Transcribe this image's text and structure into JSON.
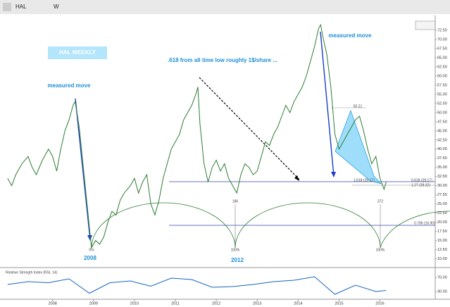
{
  "toolbar": {
    "symbol": "HAL",
    "interval": "W"
  },
  "chart_data": [
    {
      "type": "line",
      "color": "#2e7d32",
      "x": [
        2006.9,
        2007.0,
        2007.1,
        2007.25,
        2007.4,
        2007.5,
        2007.6,
        2007.75,
        2007.9,
        2008.0,
        2008.1,
        2008.2,
        2008.3,
        2008.4,
        2008.5,
        2008.55,
        2008.65,
        2008.75,
        2008.85,
        2008.95,
        2009.05,
        2009.15,
        2009.25,
        2009.35,
        2009.45,
        2009.55,
        2009.65,
        2009.75,
        2009.9,
        2010.0,
        2010.1,
        2010.2,
        2010.3,
        2010.4,
        2010.5,
        2010.6,
        2010.7,
        2010.8,
        2010.9,
        2011.0,
        2011.1,
        2011.2,
        2011.3,
        2011.4,
        2011.5,
        2011.55,
        2011.6,
        2011.7,
        2011.8,
        2011.9,
        2012.0,
        2012.1,
        2012.2,
        2012.3,
        2012.4,
        2012.5,
        2012.6,
        2012.7,
        2012.8,
        2012.9,
        2013.0,
        2013.1,
        2013.2,
        2013.3,
        2013.4,
        2013.5,
        2013.6,
        2013.7,
        2013.8,
        2013.9,
        2014.0,
        2014.1,
        2014.2,
        2014.3,
        2014.4,
        2014.5,
        2014.55,
        2014.6,
        2014.7,
        2014.8,
        2014.9,
        2015.0,
        2015.1,
        2015.2,
        2015.3,
        2015.4,
        2015.5,
        2015.6,
        2015.7,
        2015.8,
        2015.9,
        2016.0,
        2016.1,
        2016.15
      ],
      "values": [
        32,
        30,
        33,
        36,
        38,
        35,
        33,
        37,
        40,
        38,
        34,
        40,
        45,
        48,
        52,
        53,
        46,
        35,
        24,
        13,
        15,
        14,
        16,
        20,
        23,
        22,
        26,
        28,
        30,
        32,
        28,
        31,
        33,
        25,
        22,
        26,
        32,
        36,
        40,
        42,
        44,
        48,
        50,
        52,
        55,
        57,
        47,
        36,
        31,
        35,
        37,
        34,
        36,
        32,
        30,
        28,
        33,
        36,
        35,
        33,
        34,
        38,
        42,
        41,
        44,
        46,
        49,
        52,
        50,
        53,
        55,
        57,
        60,
        64,
        68,
        73,
        74,
        71,
        66,
        57,
        44,
        40,
        42,
        44,
        46,
        48,
        49,
        45,
        40,
        36,
        38,
        32,
        29,
        31
      ],
      "xlim": [
        2006.8,
        2017.35
      ],
      "ylim": [
        8,
        75
      ],
      "xticks": [
        2008,
        2009,
        2010,
        2011,
        2012,
        2013,
        2014,
        2015,
        2016
      ],
      "yticks": [
        {
          "value": 10,
          "label": "10.00"
        },
        {
          "value": 12.5,
          "label": "12.50"
        },
        {
          "value": 15,
          "label": "15.00"
        },
        {
          "value": 17.5,
          "label": "17.50"
        },
        {
          "value": 20,
          "label": "20.00"
        },
        {
          "value": 22.5,
          "label": "22.50"
        },
        {
          "value": 25,
          "label": "25.00"
        },
        {
          "value": 27.5,
          "label": "27.50"
        },
        {
          "value": 30,
          "label": "30.00"
        },
        {
          "value": 32.5,
          "label": "32.50"
        },
        {
          "value": 35,
          "label": "35.00"
        },
        {
          "value": 37.5,
          "label": "37.50"
        },
        {
          "value": 40,
          "label": "40.00"
        },
        {
          "value": 42.5,
          "label": "42.50"
        },
        {
          "value": 45,
          "label": "45.00"
        },
        {
          "value": 47.5,
          "label": "47.50"
        },
        {
          "value": 50,
          "label": "50.00"
        },
        {
          "value": 52.5,
          "label": "52.50"
        },
        {
          "value": 55,
          "label": "55.00"
        },
        {
          "value": 57.5,
          "label": "57.50"
        },
        {
          "value": 60,
          "label": "60.00"
        },
        {
          "value": 62.5,
          "label": "62.50"
        },
        {
          "value": 65,
          "label": "65.00"
        },
        {
          "value": 67.5,
          "label": "67.50"
        },
        {
          "value": 70,
          "label": "70.00"
        },
        {
          "value": 72.5,
          "label": "72.50"
        }
      ],
      "annotations": [
        "HAL WEEKLY",
        "measured move",
        "measured move",
        ".618 from all time low roughly 1$/share ...",
        "2008",
        "2012",
        "0%",
        "100%",
        "100%",
        "186",
        "372",
        "50.21",
        "1.618 (29.17)",
        "0.618 (29.17)",
        "1.27 (28.32)",
        "0.786 (16.90)"
      ]
    },
    {
      "type": "line",
      "title": "Relative Strength Index (RSI, 14)",
      "color": "#1565c0",
      "x": [
        2006.9,
        2007.4,
        2007.9,
        2008.4,
        2008.9,
        2009.4,
        2009.9,
        2010.4,
        2010.9,
        2011.4,
        2011.9,
        2012.4,
        2012.9,
        2013.4,
        2013.9,
        2014.4,
        2014.9,
        2015.4,
        2015.9,
        2016.15
      ],
      "values": [
        50,
        58,
        55,
        66,
        25,
        55,
        60,
        45,
        68,
        64,
        42,
        44,
        50,
        58,
        62,
        72,
        22,
        48,
        30,
        33
      ],
      "xlim": [
        2006.8,
        2017.35
      ],
      "ylim": [
        10,
        90
      ],
      "yticks": [
        {
          "value": 30,
          "label": "30.00"
        },
        {
          "value": 70,
          "label": "70.00"
        }
      ]
    }
  ]
}
